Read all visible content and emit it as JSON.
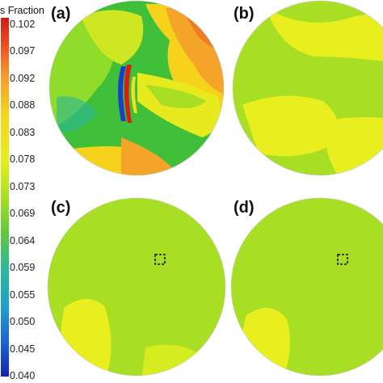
{
  "legend": {
    "title": "s Fraction",
    "ticks": [
      "0.102",
      "0.097",
      "0.092",
      "0.088",
      "0.083",
      "0.078",
      "0.073",
      "0.069",
      "0.064",
      "0.059",
      "0.055",
      "0.050",
      "0.045",
      "0.040"
    ]
  },
  "panels": [
    {
      "label": "(a)"
    },
    {
      "label": "(b)"
    },
    {
      "label": "(c)"
    },
    {
      "label": "(d)"
    }
  ]
}
